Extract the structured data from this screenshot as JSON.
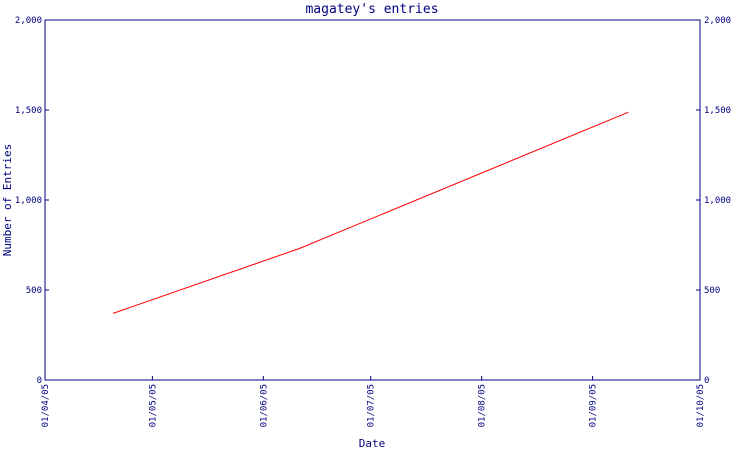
{
  "chart_data": {
    "type": "line",
    "title": "magatey's entries",
    "xlabel": "Date",
    "ylabel": "Number of Entries",
    "x_ticks": [
      "01/04/05",
      "01/05/05",
      "01/06/05",
      "01/07/05",
      "01/08/05",
      "01/09/05",
      "01/10/05"
    ],
    "y_ticks": [
      "0",
      "500",
      "1,000",
      "1,500",
      "2,000"
    ],
    "xlim": [
      "2005-04-01",
      "2005-10-01"
    ],
    "ylim": [
      0,
      2000
    ],
    "grid": false,
    "series": [
      {
        "color": "#ff0000",
        "points": [
          {
            "x": "2005-04-20",
            "y": 370
          },
          {
            "x": "2005-06-11",
            "y": 730
          },
          {
            "x": "2005-09-11",
            "y": 1488
          }
        ]
      }
    ],
    "colors": {
      "axis": "#000080",
      "text": "#000080",
      "line": "#ff0000"
    }
  }
}
